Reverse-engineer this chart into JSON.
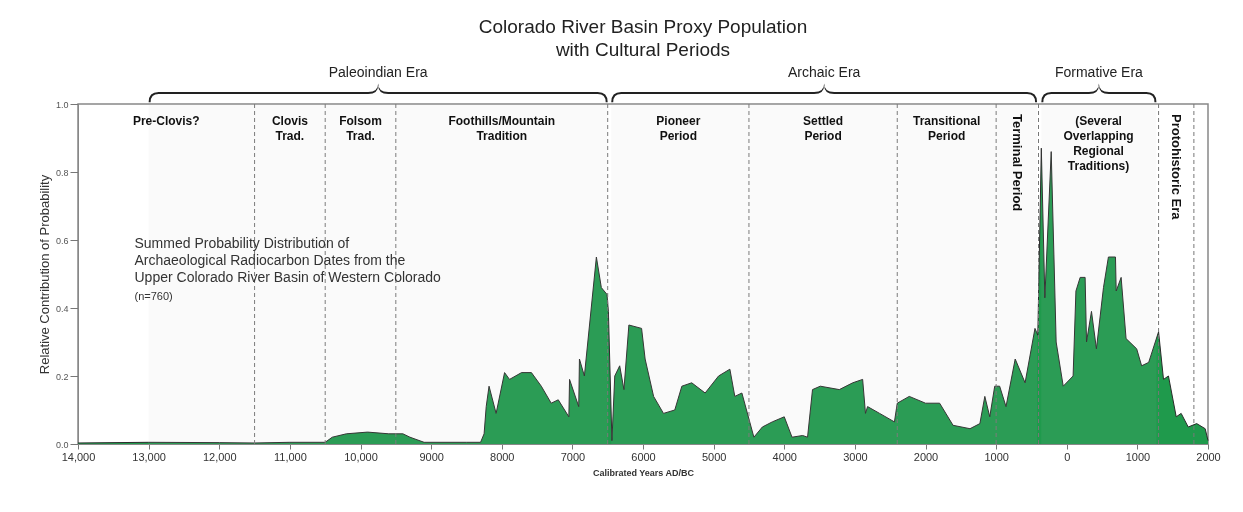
{
  "chart_data": {
    "type": "area",
    "title": "Colorado River Basin Proxy Population\nwith Cultural Periods",
    "xlabel": "Calibrated Years AD/BC",
    "ylabel": "Relative Contribution of Probability",
    "color": "#1f9a4c",
    "xlim": [
      -14000,
      2000
    ],
    "xticks": [
      {
        "value": -14000,
        "label": "14,000"
      },
      {
        "value": -13000,
        "label": "13,000"
      },
      {
        "value": -12000,
        "label": "12,000"
      },
      {
        "value": -11000,
        "label": "11,000"
      },
      {
        "value": -10000,
        "label": "10,000"
      },
      {
        "value": -9000,
        "label": "9000"
      },
      {
        "value": -8000,
        "label": "8000"
      },
      {
        "value": -7000,
        "label": "7000"
      },
      {
        "value": -6000,
        "label": "6000"
      },
      {
        "value": -5000,
        "label": "5000"
      },
      {
        "value": -4000,
        "label": "4000"
      },
      {
        "value": -3000,
        "label": "3000"
      },
      {
        "value": -2000,
        "label": "2000"
      },
      {
        "value": -1000,
        "label": "1000"
      },
      0,
      1000,
      2000
    ],
    "ylim": [
      0,
      1
    ],
    "yticks": [
      {
        "value": 0,
        "label": "0.0"
      },
      {
        "value": 0.2,
        "label": "0.2"
      },
      {
        "value": 0.4,
        "label": "0.4"
      },
      {
        "value": 0.6,
        "label": "0.6"
      },
      {
        "value": 0.8,
        "label": "0.8"
      },
      {
        "value": 1,
        "label": "1.0"
      }
    ],
    "x": [
      -14000,
      -13000,
      -12000,
      -11500,
      -11000,
      -10500,
      -10400,
      -10200,
      -9900,
      -9600,
      -9400,
      -9300,
      -9100,
      -8500,
      -8300,
      -8250,
      -8220,
      -8180,
      -8080,
      -7960,
      -7890,
      -7720,
      -7580,
      -7440,
      -7300,
      -7200,
      -7050,
      -7040,
      -6910,
      -6900,
      -6830,
      -6660,
      -6590,
      -6510,
      -6490,
      -6440,
      -6400,
      -6330,
      -6270,
      -6200,
      -6020,
      -5970,
      -5850,
      -5710,
      -5550,
      -5450,
      -5310,
      -5120,
      -4930,
      -4770,
      -4700,
      -4600,
      -4430,
      -4310,
      -4170,
      -4000,
      -3890,
      -3740,
      -3670,
      -3600,
      -3490,
      -3220,
      -3030,
      -2890,
      -2850,
      -2820,
      -2650,
      -2440,
      -2400,
      -2230,
      -2000,
      -1800,
      -1610,
      -1370,
      -1230,
      -1160,
      -1090,
      -1020,
      -950,
      -860,
      -730,
      -590,
      -450,
      -410,
      -360,
      -310,
      -220,
      -150,
      -50,
      90,
      130,
      190,
      260,
      280,
      350,
      420,
      520,
      590,
      690,
      700,
      770,
      840,
      990,
      1060,
      1160,
      1300,
      1370,
      1440,
      1550,
      1620,
      1720,
      1840,
      1960,
      2000
    ],
    "values": [
      0.003,
      0.005,
      0.004,
      0.003,
      0.005,
      0.005,
      0.02,
      0.03,
      0.035,
      0.03,
      0.03,
      0.02,
      0.005,
      0.005,
      0.005,
      0.03,
      0.11,
      0.17,
      0.09,
      0.21,
      0.19,
      0.21,
      0.21,
      0.17,
      0.12,
      0.13,
      0.08,
      0.19,
      0.11,
      0.25,
      0.2,
      0.55,
      0.46,
      0.44,
      0.39,
      0.01,
      0.2,
      0.23,
      0.16,
      0.35,
      0.34,
      0.25,
      0.14,
      0.09,
      0.1,
      0.17,
      0.18,
      0.15,
      0.2,
      0.22,
      0.14,
      0.15,
      0.02,
      0.05,
      0.065,
      0.08,
      0.02,
      0.025,
      0.02,
      0.16,
      0.17,
      0.16,
      0.18,
      0.19,
      0.09,
      0.11,
      0.09,
      0.065,
      0.12,
      0.14,
      0.12,
      0.12,
      0.055,
      0.045,
      0.06,
      0.14,
      0.08,
      0.17,
      0.17,
      0.11,
      0.25,
      0.18,
      0.34,
      0.32,
      0.87,
      0.43,
      0.86,
      0.3,
      0.17,
      0.2,
      0.45,
      0.49,
      0.49,
      0.3,
      0.39,
      0.28,
      0.46,
      0.55,
      0.55,
      0.45,
      0.49,
      0.31,
      0.28,
      0.23,
      0.24,
      0.33,
      0.19,
      0.2,
      0.08,
      0.09,
      0.05,
      0.06,
      0.045,
      0.01
    ],
    "ref_lines": [
      {
        "axis": "x",
        "value": -11500,
        "line_style": "dashed"
      },
      {
        "axis": "x",
        "value": -10500,
        "line_style": "dashed"
      },
      {
        "axis": "x",
        "value": -9500,
        "line_style": "dashed"
      },
      {
        "axis": "x",
        "value": -6500,
        "line_style": "dashed"
      },
      {
        "axis": "x",
        "value": -4500,
        "line_style": "dashed"
      },
      {
        "axis": "x",
        "value": -2400,
        "line_style": "dashed"
      },
      {
        "axis": "x",
        "value": -1000,
        "line_style": "dashed"
      },
      {
        "axis": "x",
        "value": -400,
        "line_style": "dashed"
      },
      {
        "axis": "x",
        "value": 1300,
        "line_style": "dashed"
      },
      {
        "axis": "x",
        "value": 1800,
        "line_style": "dashed"
      }
    ],
    "bands": [
      {
        "axis": "x",
        "from": -13000,
        "to": -6500,
        "label": "Paleoindian Era"
      },
      {
        "axis": "x",
        "from": -6450,
        "to": -420,
        "label": "Archaic Era"
      },
      {
        "axis": "x",
        "from": -360,
        "to": 1270,
        "label": "Formative Era"
      }
    ],
    "annotations": [
      "Pre-Clovis?",
      "Clovis\nTrad.",
      "Folsom\nTrad.",
      "Foothills/Mountain\nTradition",
      "Pioneer\nPeriod",
      "Settled\nPeriod",
      "Transitional\nPeriod",
      "Terminal Period",
      "(Several\nOverlapping\nRegional\nTraditions)",
      "Protohistoric Era",
      "Summed Probability Distribution of\nArchaeological Radiocarbon Dates from the\nUpper Colorado River Basin of Western Colorado",
      "(n=760)"
    ]
  }
}
